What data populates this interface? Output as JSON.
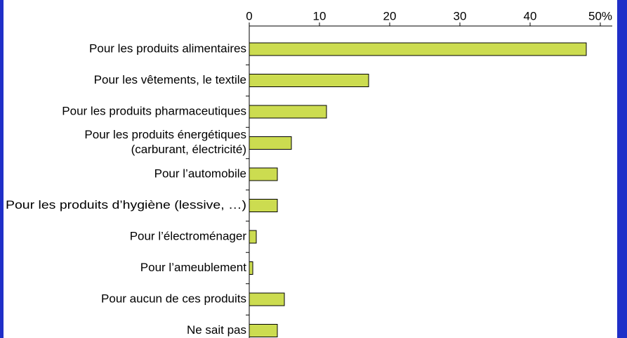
{
  "chart_data": {
    "type": "bar",
    "orientation": "horizontal",
    "categories": [
      "Pour les produits alimentaires",
      "Pour les vêtements, le textile",
      "Pour les produits pharmaceutiques",
      "Pour les produits énergétiques\n(carburant, électricité)",
      "Pour l’automobile",
      "Pour les produits d’hygiène (lessive, …)",
      "Pour l’électroménager",
      "Pour l’ameublement",
      "Pour aucun de ces produits",
      "Ne sait pas"
    ],
    "values": [
      48,
      17,
      11,
      6,
      4,
      4,
      1,
      0.5,
      5,
      4
    ],
    "color": "#ccdc50",
    "xlim": [
      0,
      50
    ],
    "xticks": [
      0,
      10,
      20,
      30,
      40,
      {
        "value": 50,
        "label": "50%"
      }
    ]
  }
}
